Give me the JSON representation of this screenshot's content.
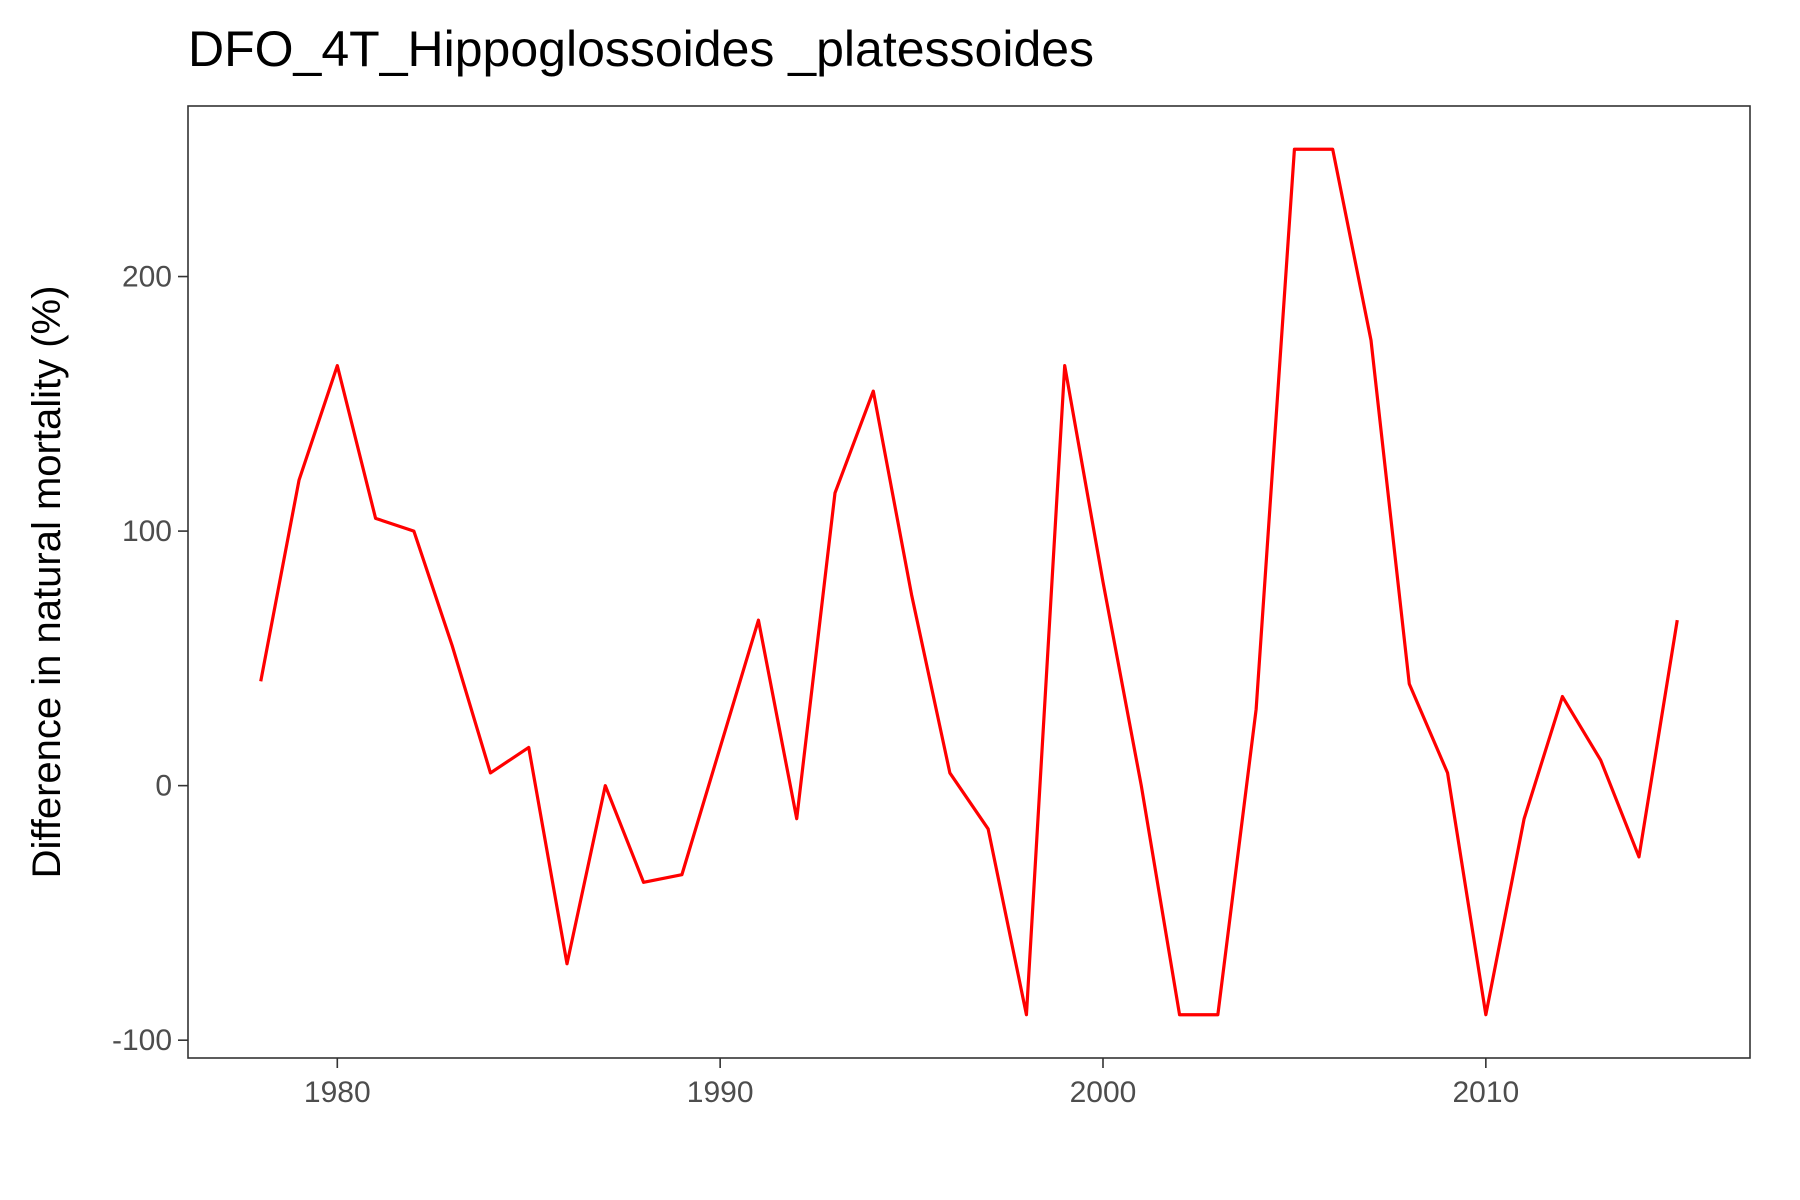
{
  "chart_data": {
    "type": "line",
    "title": "DFO_4T_Hippoglossoides _platessoides",
    "xlabel": "",
    "ylabel": "Difference in natural mortality (%)",
    "xlim": [
      1976.1,
      2016.9
    ],
    "ylim": [
      -107,
      267
    ],
    "x_ticks": [
      1980,
      1990,
      2000,
      2010
    ],
    "y_ticks": [
      -100,
      0,
      100,
      200
    ],
    "x_tick_labels": [
      "1980",
      "1990",
      "2000",
      "2010"
    ],
    "y_tick_labels": [
      "-100",
      "0",
      "100",
      "200"
    ],
    "grid": false,
    "line_color": "#ff0000",
    "series": [
      {
        "x": [
          1978,
          1979,
          1980,
          1981,
          1982,
          1983,
          1984,
          1985,
          1986,
          1987,
          1988,
          1989,
          1990,
          1991,
          1992,
          1993,
          1994,
          1995,
          1996,
          1997,
          1998,
          1999,
          2000,
          2001,
          2002,
          2003,
          2004,
          2005,
          2006,
          2007,
          2008,
          2009,
          2010,
          2011,
          2012,
          2013,
          2014,
          2015
        ],
        "values": [
          41,
          120,
          165,
          105,
          100,
          55,
          5,
          15,
          -70,
          0,
          -38,
          -35,
          15,
          65,
          -13,
          115,
          155,
          75,
          5,
          -17,
          -90,
          165,
          80,
          0,
          -90,
          -90,
          30,
          250,
          250,
          175,
          40,
          5,
          -90,
          -13,
          35,
          10,
          -28,
          65
        ]
      }
    ]
  }
}
